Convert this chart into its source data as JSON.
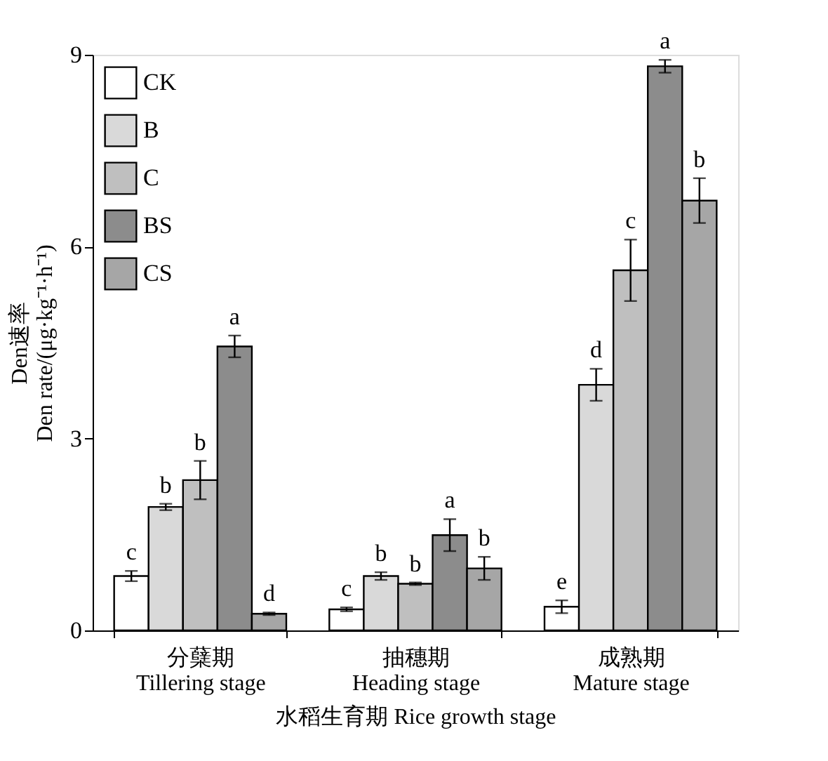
{
  "chart_data": {
    "type": "bar",
    "ylabel": "Den速率\nDen rate/(μg·kg⁻¹·h⁻¹)",
    "xlabel": "水稻生育期 Rice growth stage",
    "categories": [
      "分蘖期\nTillering stage",
      "抽穗期\nHeading stage",
      "成熟期\nMature stage"
    ],
    "ylim": [
      0,
      9
    ],
    "yticks": [
      0,
      3,
      6,
      9
    ],
    "grid": false,
    "legend": "top left",
    "series": [
      {
        "name": "CK",
        "color": "#ffffff",
        "values": [
          0.85,
          0.33,
          0.37
        ],
        "errors": [
          0.08,
          0.03,
          0.1
        ],
        "value_labels": [
          "c",
          "c",
          "e"
        ]
      },
      {
        "name": "B",
        "color": "#d9d9d9",
        "values": [
          1.93,
          0.85,
          3.84
        ],
        "errors": [
          0.05,
          0.06,
          0.25
        ],
        "value_labels": [
          "b",
          "b",
          "d"
        ]
      },
      {
        "name": "C",
        "color": "#bfbfbf",
        "values": [
          2.35,
          0.73,
          5.63
        ],
        "errors": [
          0.3,
          0.02,
          0.48
        ],
        "value_labels": [
          "b",
          "b",
          "c"
        ]
      },
      {
        "name": "BS",
        "color": "#8c8c8c",
        "values": [
          4.44,
          1.49,
          8.82
        ],
        "errors": [
          0.17,
          0.25,
          0.1
        ],
        "value_labels": [
          "a",
          "a",
          "a"
        ]
      },
      {
        "name": "CS",
        "color": "#a6a6a6",
        "values": [
          0.26,
          0.97,
          6.72
        ],
        "errors": [
          0.02,
          0.18,
          0.35
        ],
        "value_labels": [
          "d",
          "b",
          "b"
        ]
      }
    ]
  }
}
